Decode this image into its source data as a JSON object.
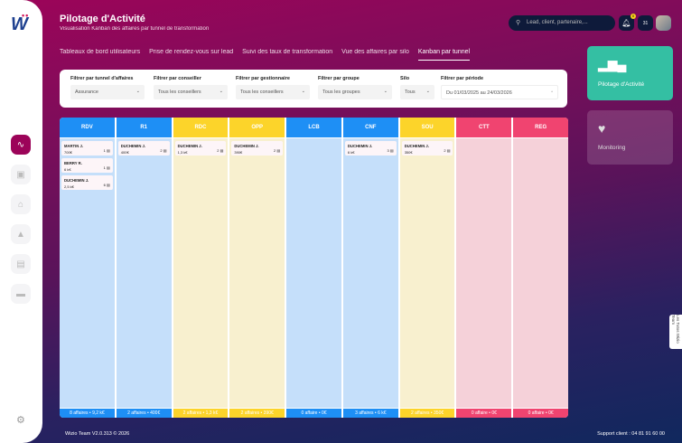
{
  "app": {
    "logo": "Wi",
    "title": "Pilotage d'Activité",
    "subtitle": "Visualisation Kanban des affaires par tunnel de transformation"
  },
  "header": {
    "search_placeholder": "Lead, client, partenaire,...",
    "notification_count": "0",
    "calendar_day": "31"
  },
  "sidebar": {
    "items": [
      {
        "icon": "activity-icon",
        "active": true
      },
      {
        "icon": "contact-book-icon"
      },
      {
        "icon": "location-icon"
      },
      {
        "icon": "pyramid-icon"
      },
      {
        "icon": "team-icon"
      },
      {
        "icon": "card-icon"
      }
    ]
  },
  "tabs": [
    {
      "label": "Tableaux de bord utilisateurs"
    },
    {
      "label": "Prise de rendez-vous sur lead"
    },
    {
      "label": "Suivi des taux de transformation"
    },
    {
      "label": "Vue des affaires par silo"
    },
    {
      "label": "Kanban par tunnel",
      "active": true
    }
  ],
  "filters": [
    {
      "label": "Filtrer par tunnel d'affaires",
      "value": "Assurance"
    },
    {
      "label": "Filtrer par conseiller",
      "value": "Tous les conseillers"
    },
    {
      "label": "Filtrer par gestionnaire",
      "value": "Tous les conseillers"
    },
    {
      "label": "Filtrer par groupe",
      "value": "Tous les groupes"
    },
    {
      "label": "Silo",
      "value": "Tous"
    },
    {
      "label": "Filtrer par période",
      "value": "Du 01/03/2025 au 24/03/2026"
    }
  ],
  "columns": [
    {
      "name": "RDV",
      "color": "blue",
      "footer": "8 affaires • 9,2 k€",
      "cards": [
        {
          "name": "MARTIN J.",
          "amount": "700€",
          "count": "1"
        },
        {
          "name": "BERRY R.",
          "amount": "6 k€",
          "count": "1"
        },
        {
          "name": "DUCHEMIN J.",
          "amount": "2,5 k€",
          "count": "6"
        }
      ]
    },
    {
      "name": "R1",
      "color": "blue",
      "footer": "2 affaires • 400€",
      "cards": [
        {
          "name": "DUCHEMIN J.",
          "amount": "400€",
          "count": "2"
        }
      ]
    },
    {
      "name": "RDC",
      "color": "yel",
      "footer": "2 affaires • 1,3 k€",
      "cards": [
        {
          "name": "DUCHEMIN J.",
          "amount": "1,3 k€",
          "count": "2"
        }
      ]
    },
    {
      "name": "OPP",
      "color": "yel",
      "footer": "2 affaires • 390€",
      "cards": [
        {
          "name": "DUCHEMIN J.",
          "amount": "390€",
          "count": "2"
        }
      ]
    },
    {
      "name": "LCB",
      "color": "blue",
      "footer": "0 affaire • 0€",
      "cards": []
    },
    {
      "name": "CNF",
      "color": "blue",
      "footer": "3 affaires • 6 k€",
      "cards": [
        {
          "name": "DUCHEMIN J.",
          "amount": "6 k€",
          "count": "3"
        }
      ]
    },
    {
      "name": "SOU",
      "color": "yel",
      "footer": "2 affaires • 350€",
      "cards": [
        {
          "name": "DUCHEMIN J.",
          "amount": "350€",
          "count": "2"
        }
      ]
    },
    {
      "name": "CTT",
      "color": "red",
      "footer": "0 affaire • 0€",
      "cards": []
    },
    {
      "name": "REG",
      "color": "red",
      "footer": "0 affaire • 0€",
      "cards": []
    }
  ],
  "right_panel": [
    {
      "label": "Pilotage d'Activité",
      "active": true,
      "color": "#34bfa3"
    },
    {
      "label": "Monitoring"
    }
  ],
  "tutorial_tab": "Les Tutos Wizio Team",
  "footer": {
    "version": "Wizio Team V2.0.313 © 2026",
    "support": "Support client : 04 81 91 60 00"
  }
}
